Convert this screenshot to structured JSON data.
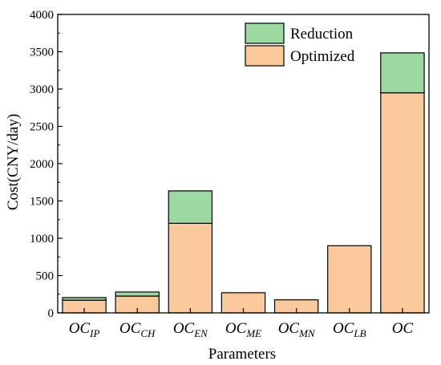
{
  "chart_data": {
    "type": "bar",
    "stacked": true,
    "title": "",
    "xlabel": "Parameters",
    "ylabel": "Cost(CNY/day)",
    "ylim": [
      0,
      4000
    ],
    "yticks": [
      0,
      500,
      1000,
      1500,
      2000,
      2500,
      3000,
      3500,
      4000
    ],
    "grid": false,
    "legend_position": "top-right",
    "categories": [
      {
        "main": "OC",
        "sub": "IP"
      },
      {
        "main": "OC",
        "sub": "CH"
      },
      {
        "main": "OC",
        "sub": "EN"
      },
      {
        "main": "OC",
        "sub": "ME"
      },
      {
        "main": "OC",
        "sub": "MN"
      },
      {
        "main": "OC",
        "sub": "LB"
      },
      {
        "main": "OC",
        "sub": ""
      }
    ],
    "series": [
      {
        "name": "Optimized",
        "color": "#f9c89b",
        "values": [
          170,
          225,
          1200,
          270,
          175,
          900,
          2950
        ]
      },
      {
        "name": "Reduction",
        "color": "#9bd9a0",
        "values": [
          35,
          55,
          435,
          0,
          0,
          0,
          535
        ]
      }
    ],
    "legend_order": [
      1,
      0
    ]
  }
}
